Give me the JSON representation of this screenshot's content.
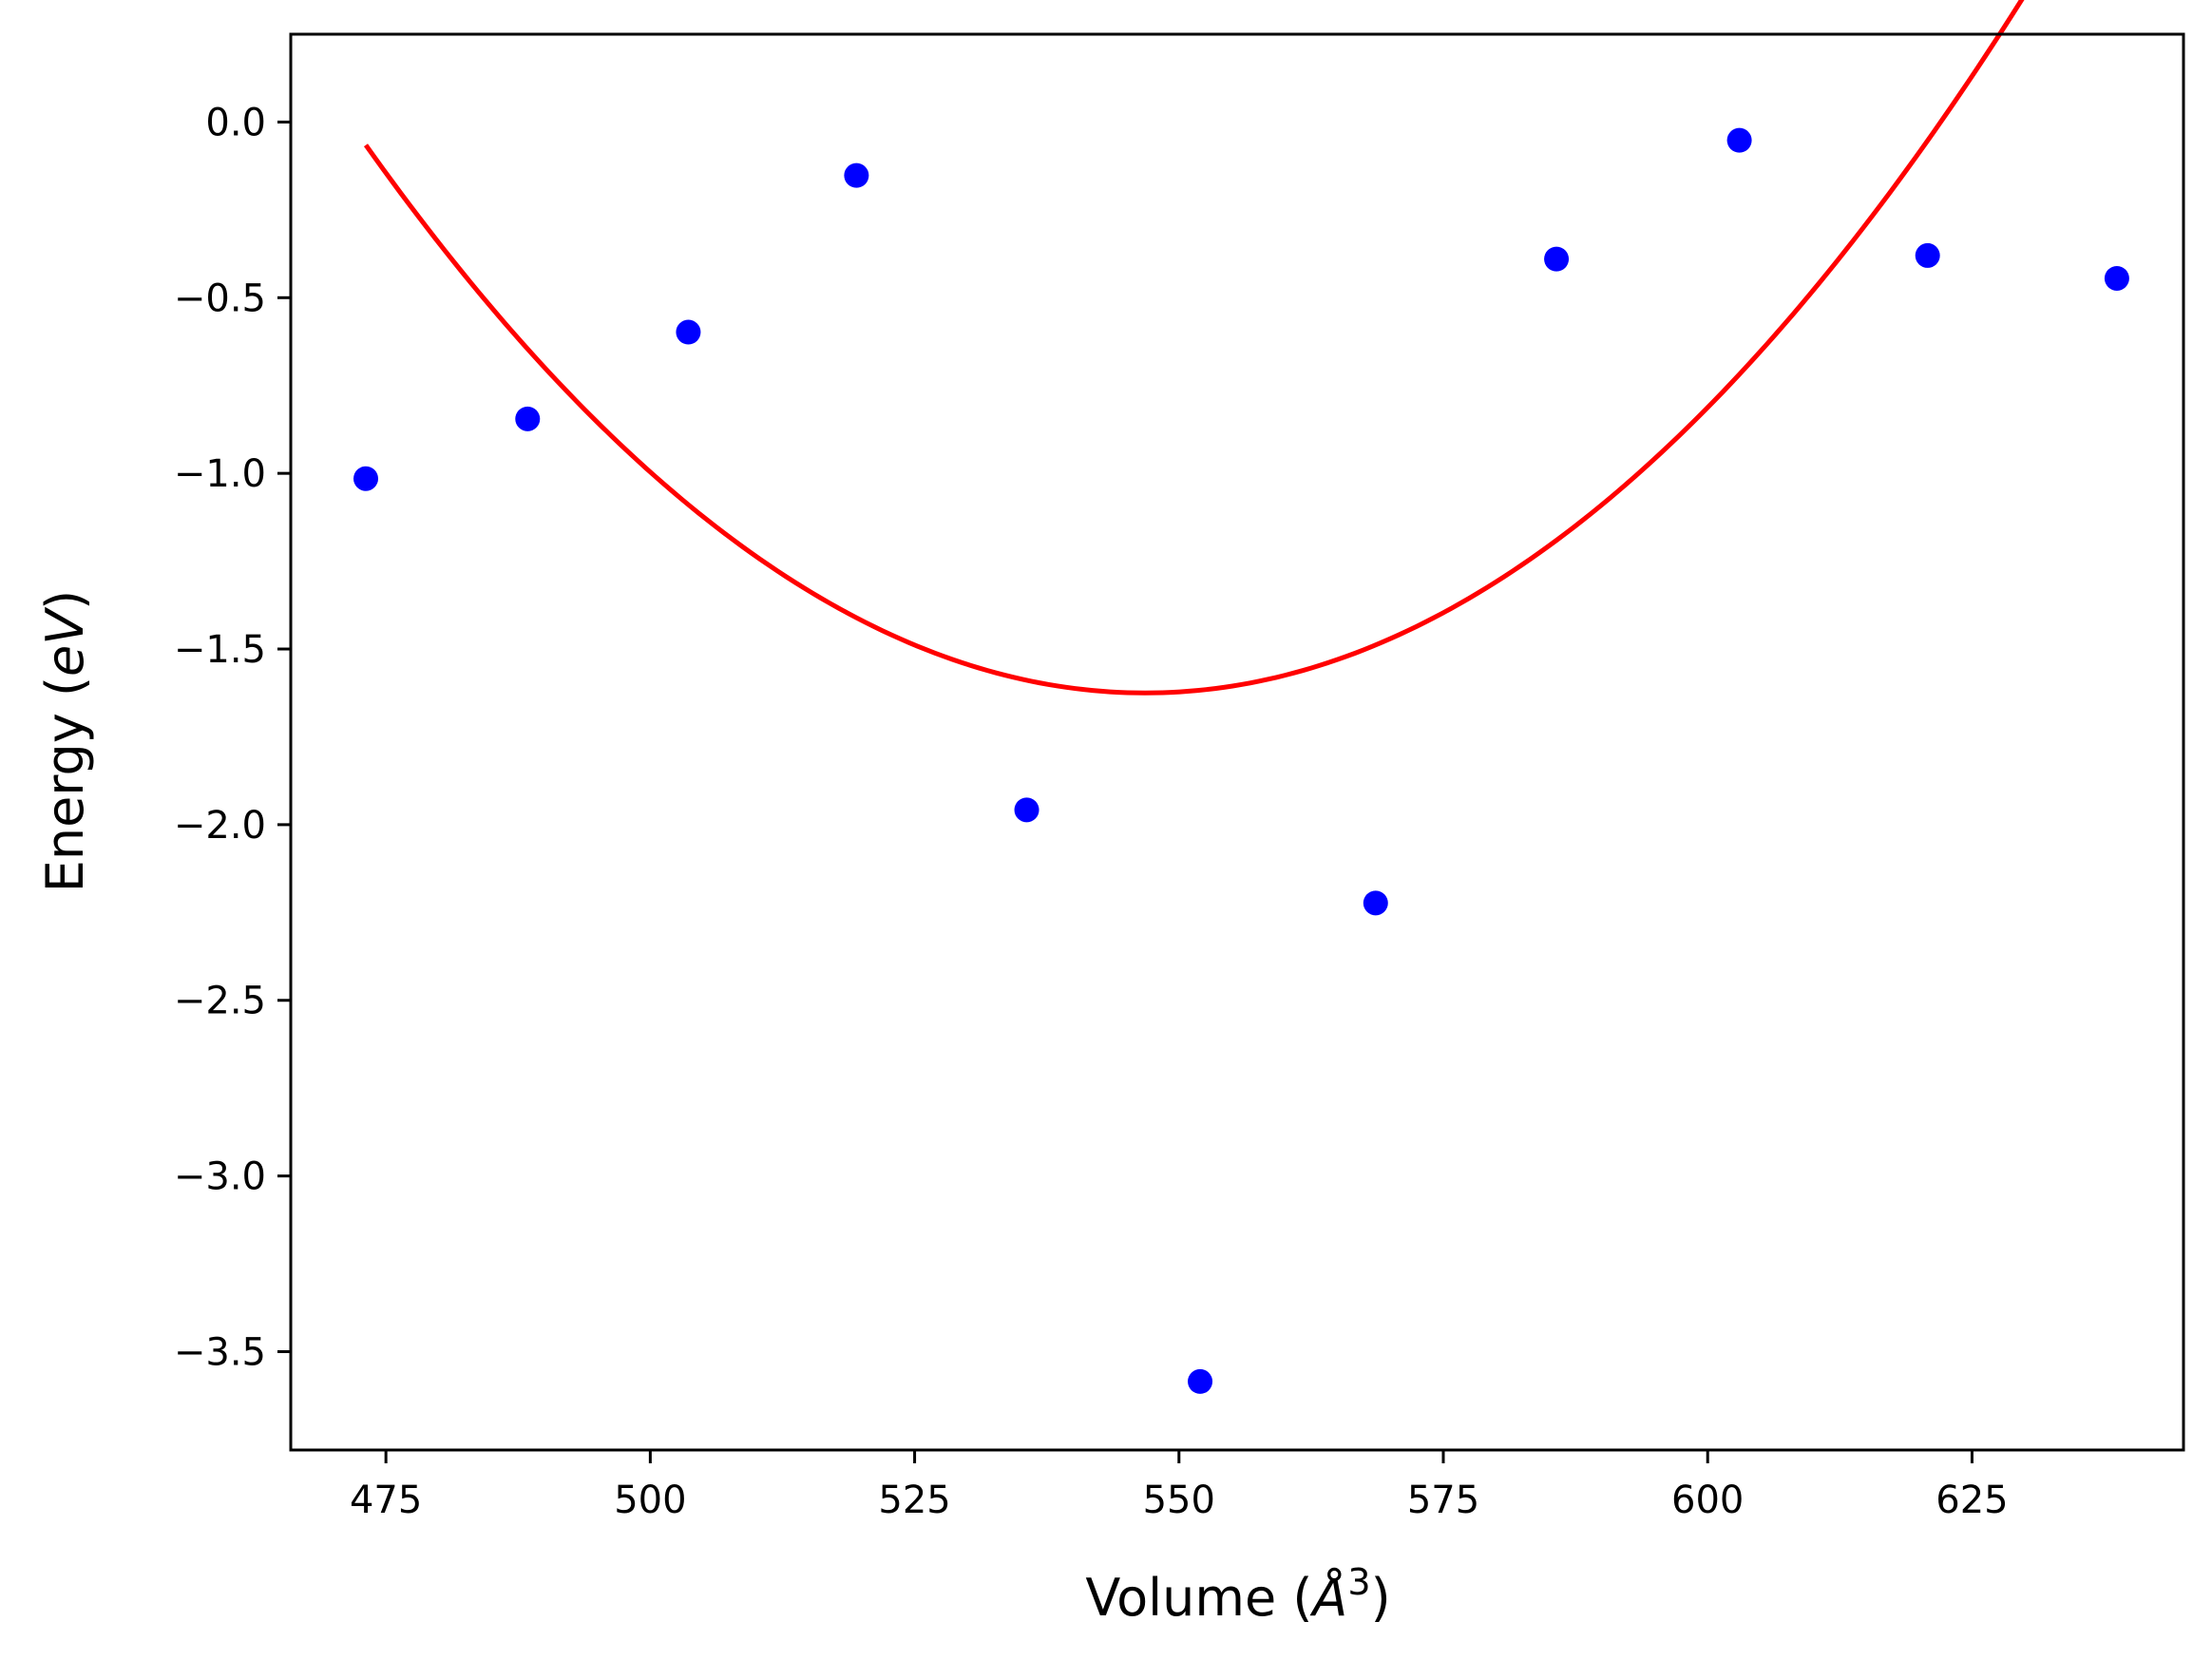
{
  "chart_data": {
    "type": "scatter",
    "title": "",
    "xlabel": {
      "prefix": "Volume (",
      "unit": "Å",
      "superscript": "3",
      "suffix": ")"
    },
    "ylabel": {
      "prefix": "Energy (",
      "unit": "eV",
      "suffix": ")"
    },
    "xlim": [
      466,
      645
    ],
    "ylim": [
      -3.78,
      0.25
    ],
    "xticks": [
      475,
      500,
      525,
      550,
      575,
      600,
      625
    ],
    "xtick_labels": [
      "475",
      "500",
      "525",
      "550",
      "575",
      "600",
      "625"
    ],
    "yticks": [
      0.0,
      -0.5,
      -1.0,
      -1.5,
      -2.0,
      -2.5,
      -3.0,
      -3.5
    ],
    "ytick_labels": [
      "0.0",
      "−0.5",
      "−1.0",
      "−1.5",
      "−2.0",
      "−2.5",
      "−3.0",
      "−3.5"
    ],
    "grid": false,
    "series": [
      {
        "kind": "scatter",
        "color": "#0000ff",
        "points": [
          {
            "x": 473.1,
            "y": -1.015
          },
          {
            "x": 488.4,
            "y": -0.845
          },
          {
            "x": 503.6,
            "y": -0.598
          },
          {
            "x": 519.5,
            "y": -0.152
          },
          {
            "x": 535.6,
            "y": -1.958
          },
          {
            "x": 552.0,
            "y": -3.585
          },
          {
            "x": 568.6,
            "y": -2.223
          },
          {
            "x": 585.7,
            "y": -0.39
          },
          {
            "x": 603.0,
            "y": -0.052
          },
          {
            "x": 620.8,
            "y": -0.38
          },
          {
            "x": 638.7,
            "y": -0.445
          }
        ]
      },
      {
        "kind": "line",
        "color": "#ff0000",
        "fit": {
          "type": "quadratic",
          "a": 0.0002871,
          "x0": 546.8,
          "y0": -1.625,
          "x_start": 473.1,
          "x_end": 638.7
        }
      }
    ]
  }
}
